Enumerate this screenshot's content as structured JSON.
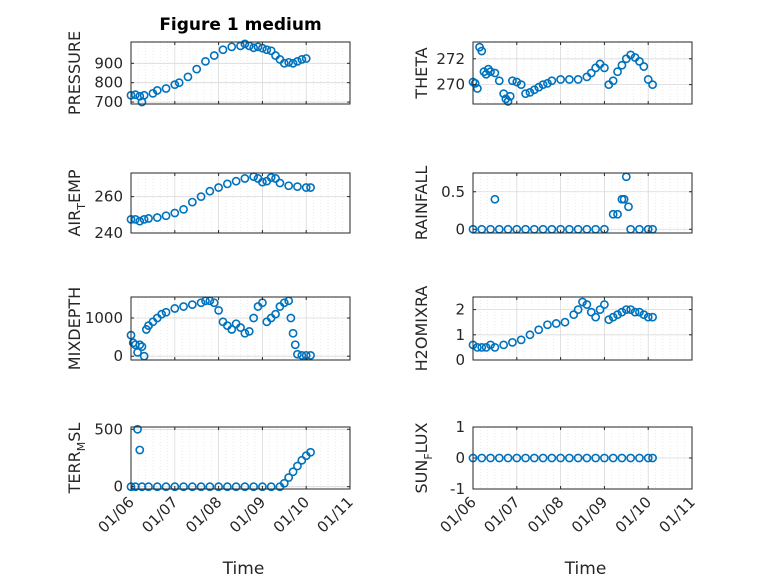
{
  "chart_data": [
    {
      "type": "scatter",
      "title": "Figure 1 medium",
      "ylabel": "PRESSURE",
      "xlabel": "",
      "ylim": [
        690,
        1010
      ],
      "yticks": [
        700,
        800,
        900
      ],
      "grid": true,
      "xticks": [
        "01/06",
        "01/07",
        "01/08",
        "01/09",
        "01/10",
        "01/11"
      ],
      "points": [
        [
          0.0,
          735
        ],
        [
          0.1,
          738
        ],
        [
          0.2,
          730
        ],
        [
          0.25,
          700
        ],
        [
          0.3,
          735
        ],
        [
          0.5,
          745
        ],
        [
          0.6,
          760
        ],
        [
          0.8,
          770
        ],
        [
          1.0,
          790
        ],
        [
          1.1,
          800
        ],
        [
          1.3,
          830
        ],
        [
          1.5,
          870
        ],
        [
          1.7,
          910
        ],
        [
          1.9,
          940
        ],
        [
          2.1,
          970
        ],
        [
          2.3,
          985
        ],
        [
          2.5,
          990
        ],
        [
          2.6,
          1000
        ],
        [
          2.7,
          990
        ],
        [
          2.8,
          980
        ],
        [
          2.9,
          985
        ],
        [
          3.0,
          978
        ],
        [
          3.1,
          970
        ],
        [
          3.2,
          965
        ],
        [
          3.3,
          940
        ],
        [
          3.4,
          920
        ],
        [
          3.5,
          900
        ],
        [
          3.6,
          905
        ],
        [
          3.7,
          900
        ],
        [
          3.8,
          910
        ],
        [
          3.9,
          920
        ],
        [
          4.0,
          925
        ]
      ]
    },
    {
      "type": "scatter",
      "title": "",
      "ylabel": "THETA",
      "xlabel": "",
      "ylim": [
        268.5,
        273.3
      ],
      "yticks": [
        270,
        272
      ],
      "grid": true,
      "xticks": [
        "01/06",
        "01/07",
        "01/08",
        "01/09",
        "01/10",
        "01/11"
      ],
      "points": [
        [
          0.0,
          270.2
        ],
        [
          0.05,
          270.1
        ],
        [
          0.1,
          269.7
        ],
        [
          0.15,
          272.9
        ],
        [
          0.2,
          272.6
        ],
        [
          0.25,
          271.0
        ],
        [
          0.3,
          270.8
        ],
        [
          0.35,
          271.2
        ],
        [
          0.4,
          271.0
        ],
        [
          0.5,
          270.9
        ],
        [
          0.6,
          270.3
        ],
        [
          0.7,
          269.3
        ],
        [
          0.75,
          268.9
        ],
        [
          0.8,
          268.7
        ],
        [
          0.85,
          269.1
        ],
        [
          0.9,
          270.3
        ],
        [
          1.0,
          270.2
        ],
        [
          1.1,
          270.0
        ],
        [
          1.2,
          269.3
        ],
        [
          1.3,
          269.4
        ],
        [
          1.4,
          269.6
        ],
        [
          1.5,
          269.8
        ],
        [
          1.6,
          270.0
        ],
        [
          1.7,
          270.1
        ],
        [
          1.8,
          270.3
        ],
        [
          2.0,
          270.4
        ],
        [
          2.2,
          270.4
        ],
        [
          2.4,
          270.4
        ],
        [
          2.6,
          270.6
        ],
        [
          2.7,
          270.9
        ],
        [
          2.8,
          271.3
        ],
        [
          2.9,
          271.6
        ],
        [
          3.0,
          271.3
        ],
        [
          3.1,
          270.0
        ],
        [
          3.2,
          270.3
        ],
        [
          3.3,
          271.0
        ],
        [
          3.4,
          271.5
        ],
        [
          3.5,
          272.0
        ],
        [
          3.6,
          272.3
        ],
        [
          3.7,
          272.1
        ],
        [
          3.8,
          271.8
        ],
        [
          3.9,
          271.4
        ],
        [
          4.0,
          270.4
        ],
        [
          4.1,
          270.0
        ]
      ]
    },
    {
      "type": "scatter",
      "title": "",
      "ylabel": "AIR_TEMP",
      "xlabel": "",
      "ylim": [
        240,
        273
      ],
      "yticks": [
        240,
        260
      ],
      "grid": true,
      "xticks": [
        "01/06",
        "01/07",
        "01/08",
        "01/09",
        "01/10",
        "01/11"
      ],
      "points": [
        [
          0.0,
          247.5
        ],
        [
          0.1,
          247.5
        ],
        [
          0.2,
          246.5
        ],
        [
          0.3,
          247.5
        ],
        [
          0.4,
          248.0
        ],
        [
          0.6,
          248.5
        ],
        [
          0.8,
          249.5
        ],
        [
          1.0,
          251.0
        ],
        [
          1.2,
          253.0
        ],
        [
          1.4,
          257.0
        ],
        [
          1.6,
          260.0
        ],
        [
          1.8,
          263.0
        ],
        [
          2.0,
          265.0
        ],
        [
          2.2,
          267.0
        ],
        [
          2.4,
          268.5
        ],
        [
          2.6,
          270.0
        ],
        [
          2.8,
          271.0
        ],
        [
          2.9,
          270.0
        ],
        [
          3.0,
          268.0
        ],
        [
          3.1,
          268.5
        ],
        [
          3.2,
          270.5
        ],
        [
          3.3,
          270.0
        ],
        [
          3.4,
          267.5
        ],
        [
          3.6,
          266.0
        ],
        [
          3.8,
          265.5
        ],
        [
          4.0,
          265.0
        ],
        [
          4.1,
          265.0
        ]
      ]
    },
    {
      "type": "scatter",
      "title": "",
      "ylabel": "RAINFALL",
      "xlabel": "",
      "ylim": [
        -0.05,
        0.75
      ],
      "yticks": [
        0,
        0.5
      ],
      "grid": true,
      "xticks": [
        "01/06",
        "01/07",
        "01/08",
        "01/09",
        "01/10",
        "01/11"
      ],
      "points": [
        [
          0.0,
          0
        ],
        [
          0.2,
          0
        ],
        [
          0.4,
          0
        ],
        [
          0.5,
          0.4
        ],
        [
          0.6,
          0
        ],
        [
          0.8,
          0
        ],
        [
          1.0,
          0
        ],
        [
          1.2,
          0
        ],
        [
          1.4,
          0
        ],
        [
          1.6,
          0
        ],
        [
          1.8,
          0
        ],
        [
          2.0,
          0
        ],
        [
          2.2,
          0
        ],
        [
          2.4,
          0
        ],
        [
          2.6,
          0
        ],
        [
          2.8,
          0
        ],
        [
          3.0,
          0
        ],
        [
          3.2,
          0.2
        ],
        [
          3.3,
          0.2
        ],
        [
          3.4,
          0.4
        ],
        [
          3.45,
          0.4
        ],
        [
          3.5,
          0.7
        ],
        [
          3.55,
          0.3
        ],
        [
          3.6,
          0
        ],
        [
          3.8,
          0
        ],
        [
          4.0,
          0
        ],
        [
          4.1,
          0
        ]
      ]
    },
    {
      "type": "scatter",
      "title": "",
      "ylabel": "MIXDEPTH",
      "xlabel": "",
      "ylim": [
        -100,
        1550
      ],
      "yticks": [
        0,
        1000
      ],
      "grid": true,
      "xticks": [
        "01/06",
        "01/07",
        "01/08",
        "01/09",
        "01/10",
        "01/11"
      ],
      "points": [
        [
          0.0,
          550
        ],
        [
          0.05,
          350
        ],
        [
          0.1,
          300
        ],
        [
          0.15,
          100
        ],
        [
          0.2,
          300
        ],
        [
          0.25,
          250
        ],
        [
          0.3,
          0
        ],
        [
          0.35,
          700
        ],
        [
          0.4,
          800
        ],
        [
          0.5,
          900
        ],
        [
          0.6,
          1000
        ],
        [
          0.7,
          1100
        ],
        [
          0.8,
          1150
        ],
        [
          1.0,
          1250
        ],
        [
          1.2,
          1300
        ],
        [
          1.4,
          1350
        ],
        [
          1.6,
          1400
        ],
        [
          1.7,
          1450
        ],
        [
          1.8,
          1450
        ],
        [
          1.9,
          1400
        ],
        [
          2.0,
          1200
        ],
        [
          2.1,
          900
        ],
        [
          2.2,
          800
        ],
        [
          2.3,
          700
        ],
        [
          2.4,
          850
        ],
        [
          2.5,
          750
        ],
        [
          2.6,
          600
        ],
        [
          2.7,
          650
        ],
        [
          2.8,
          1000
        ],
        [
          2.9,
          1300
        ],
        [
          3.0,
          1400
        ],
        [
          3.1,
          900
        ],
        [
          3.2,
          1000
        ],
        [
          3.3,
          1100
        ],
        [
          3.4,
          1300
        ],
        [
          3.5,
          1400
        ],
        [
          3.6,
          1450
        ],
        [
          3.65,
          1000
        ],
        [
          3.7,
          600
        ],
        [
          3.75,
          300
        ],
        [
          3.8,
          50
        ],
        [
          3.9,
          20
        ],
        [
          4.0,
          20
        ],
        [
          4.1,
          20
        ]
      ]
    },
    {
      "type": "scatter",
      "title": "",
      "ylabel": "H2OMIXRA",
      "xlabel": "",
      "ylim": [
        0,
        2.5
      ],
      "yticks": [
        0,
        1,
        2
      ],
      "grid": true,
      "xticks": [
        "01/06",
        "01/07",
        "01/08",
        "01/09",
        "01/10",
        "01/11"
      ],
      "points": [
        [
          0.0,
          0.6
        ],
        [
          0.1,
          0.5
        ],
        [
          0.2,
          0.5
        ],
        [
          0.3,
          0.5
        ],
        [
          0.4,
          0.6
        ],
        [
          0.5,
          0.5
        ],
        [
          0.7,
          0.6
        ],
        [
          0.9,
          0.7
        ],
        [
          1.1,
          0.8
        ],
        [
          1.3,
          1.0
        ],
        [
          1.5,
          1.2
        ],
        [
          1.7,
          1.4
        ],
        [
          1.9,
          1.45
        ],
        [
          2.1,
          1.5
        ],
        [
          2.3,
          1.8
        ],
        [
          2.4,
          2.0
        ],
        [
          2.5,
          2.3
        ],
        [
          2.6,
          2.2
        ],
        [
          2.7,
          1.9
        ],
        [
          2.8,
          1.7
        ],
        [
          2.9,
          2.0
        ],
        [
          3.0,
          2.2
        ],
        [
          3.1,
          1.6
        ],
        [
          3.2,
          1.7
        ],
        [
          3.3,
          1.8
        ],
        [
          3.4,
          1.9
        ],
        [
          3.5,
          2.0
        ],
        [
          3.6,
          2.0
        ],
        [
          3.7,
          1.9
        ],
        [
          3.8,
          1.9
        ],
        [
          3.9,
          1.8
        ],
        [
          4.0,
          1.7
        ],
        [
          4.1,
          1.7
        ]
      ]
    },
    {
      "type": "scatter",
      "title": "",
      "ylabel": "TERR_MSL",
      "xlabel": "Time",
      "ylim": [
        -20,
        520
      ],
      "yticks": [
        0,
        500
      ],
      "grid": true,
      "xticks": [
        "01/06",
        "01/07",
        "01/08",
        "01/09",
        "01/10",
        "01/11"
      ],
      "points": [
        [
          0.0,
          0
        ],
        [
          0.1,
          0
        ],
        [
          0.15,
          500
        ],
        [
          0.2,
          320
        ],
        [
          0.25,
          0
        ],
        [
          0.4,
          0
        ],
        [
          0.6,
          0
        ],
        [
          0.8,
          0
        ],
        [
          1.0,
          0
        ],
        [
          1.2,
          0
        ],
        [
          1.4,
          0
        ],
        [
          1.6,
          0
        ],
        [
          1.8,
          0
        ],
        [
          2.0,
          0
        ],
        [
          2.2,
          0
        ],
        [
          2.4,
          0
        ],
        [
          2.6,
          0
        ],
        [
          2.8,
          0
        ],
        [
          3.0,
          0
        ],
        [
          3.2,
          0
        ],
        [
          3.4,
          0
        ],
        [
          3.5,
          30
        ],
        [
          3.6,
          80
        ],
        [
          3.7,
          130
        ],
        [
          3.8,
          180
        ],
        [
          3.9,
          230
        ],
        [
          4.0,
          270
        ],
        [
          4.1,
          300
        ]
      ]
    },
    {
      "type": "scatter",
      "title": "",
      "ylabel": "SUN_FLUX",
      "xlabel": "Time",
      "ylim": [
        -1,
        1
      ],
      "yticks": [
        -1,
        0,
        1
      ],
      "grid": true,
      "xticks": [
        "01/06",
        "01/07",
        "01/08",
        "01/09",
        "01/10",
        "01/11"
      ],
      "points": [
        [
          0.0,
          0
        ],
        [
          0.2,
          0
        ],
        [
          0.4,
          0
        ],
        [
          0.6,
          0
        ],
        [
          0.8,
          0
        ],
        [
          1.0,
          0
        ],
        [
          1.2,
          0
        ],
        [
          1.4,
          0
        ],
        [
          1.6,
          0
        ],
        [
          1.8,
          0
        ],
        [
          2.0,
          0
        ],
        [
          2.2,
          0
        ],
        [
          2.4,
          0
        ],
        [
          2.6,
          0
        ],
        [
          2.8,
          0
        ],
        [
          3.0,
          0
        ],
        [
          3.2,
          0
        ],
        [
          3.4,
          0
        ],
        [
          3.6,
          0
        ],
        [
          3.8,
          0
        ],
        [
          4.0,
          0
        ],
        [
          4.1,
          0
        ]
      ]
    }
  ],
  "style": {
    "marker_color": "#0072bd",
    "axis_color": "#262626",
    "grid_color": "#d9d9d9"
  }
}
